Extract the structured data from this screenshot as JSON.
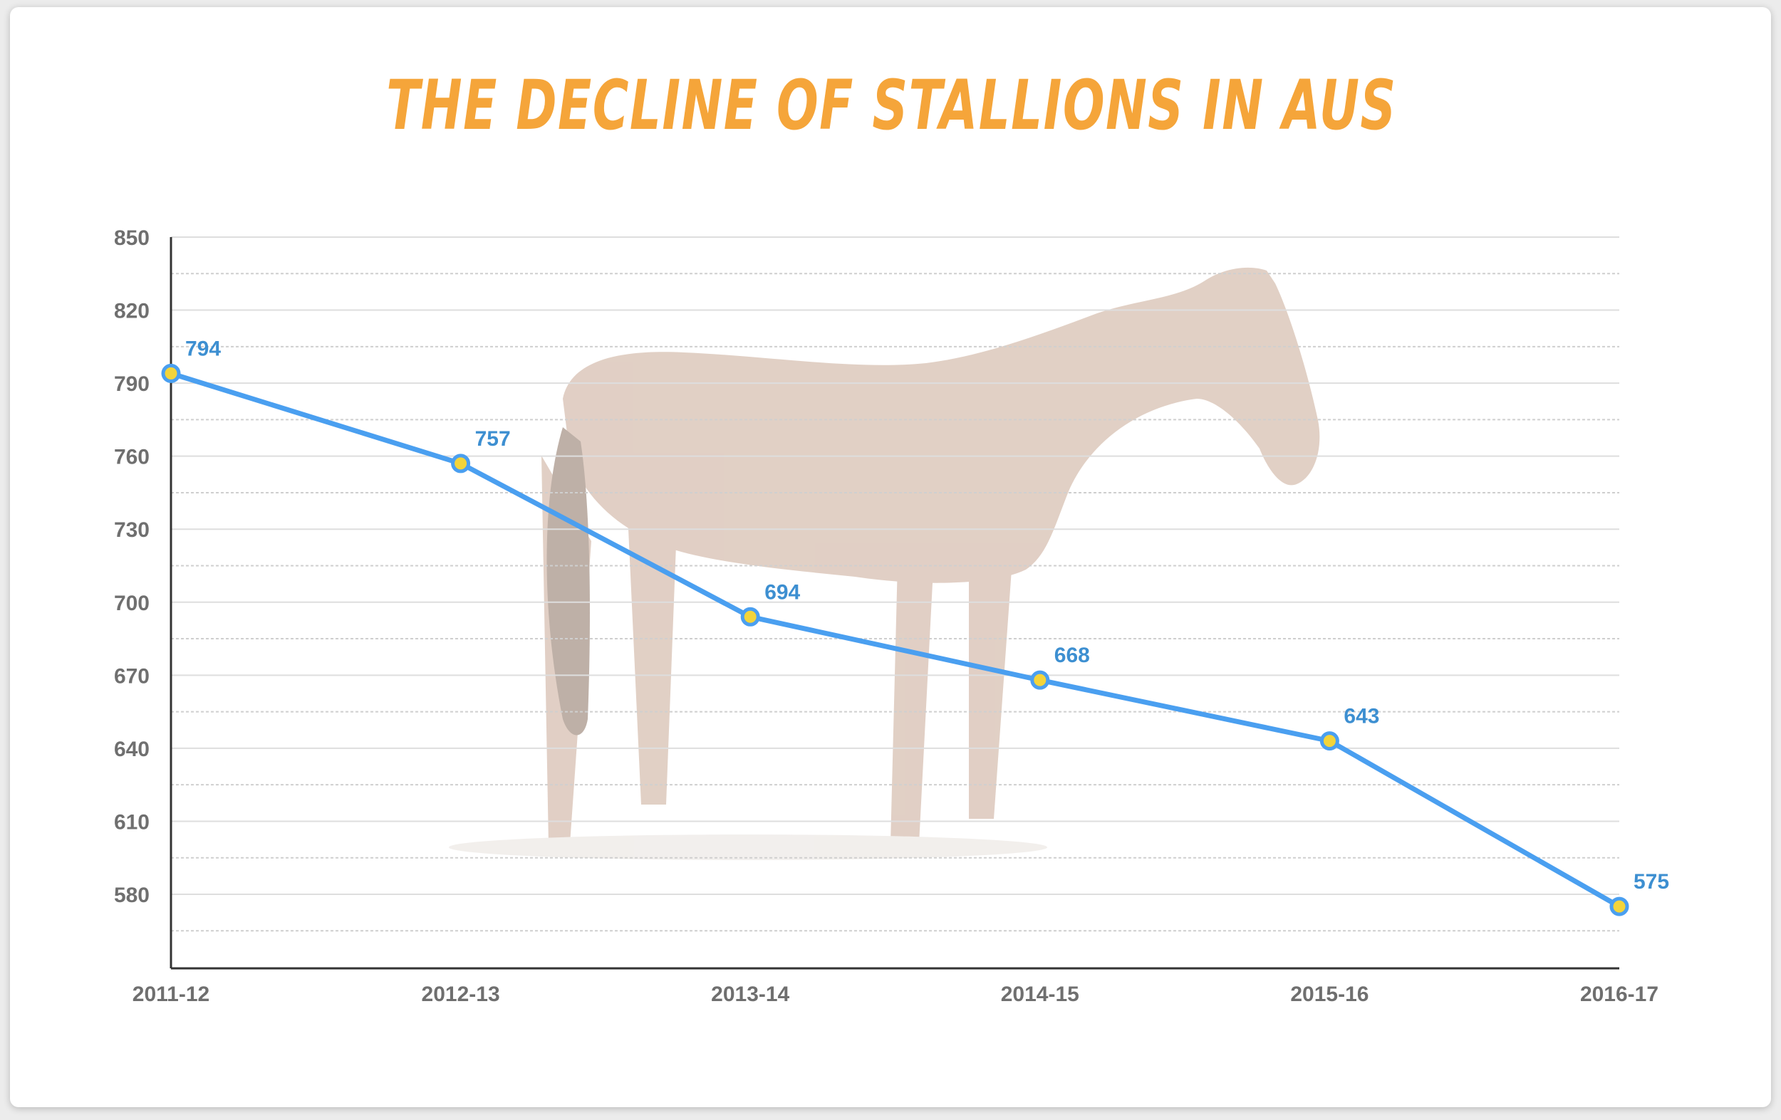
{
  "colors": {
    "title": "#f5a53a",
    "line": "#4a9ff0",
    "marker_fill": "#f3d43a",
    "data_label": "#3d8fd1",
    "horse": "#c9a996"
  },
  "chart_data": {
    "type": "line",
    "title": "THE DECLINE OF STALLIONS IN AUS",
    "xlabel": "",
    "ylabel": "",
    "categories": [
      "2011-12",
      "2012-13",
      "2013-14",
      "2014-15",
      "2015-16",
      "2016-17"
    ],
    "series": [
      {
        "values": [
          794,
          757,
          694,
          668,
          643,
          575
        ]
      }
    ],
    "yticks": [
      850,
      820,
      790,
      760,
      730,
      700,
      670,
      640,
      610,
      580
    ],
    "ylim": [
      565,
      850
    ],
    "grid": true,
    "legend": "none",
    "background_image": "faded-horse-silhouette"
  }
}
